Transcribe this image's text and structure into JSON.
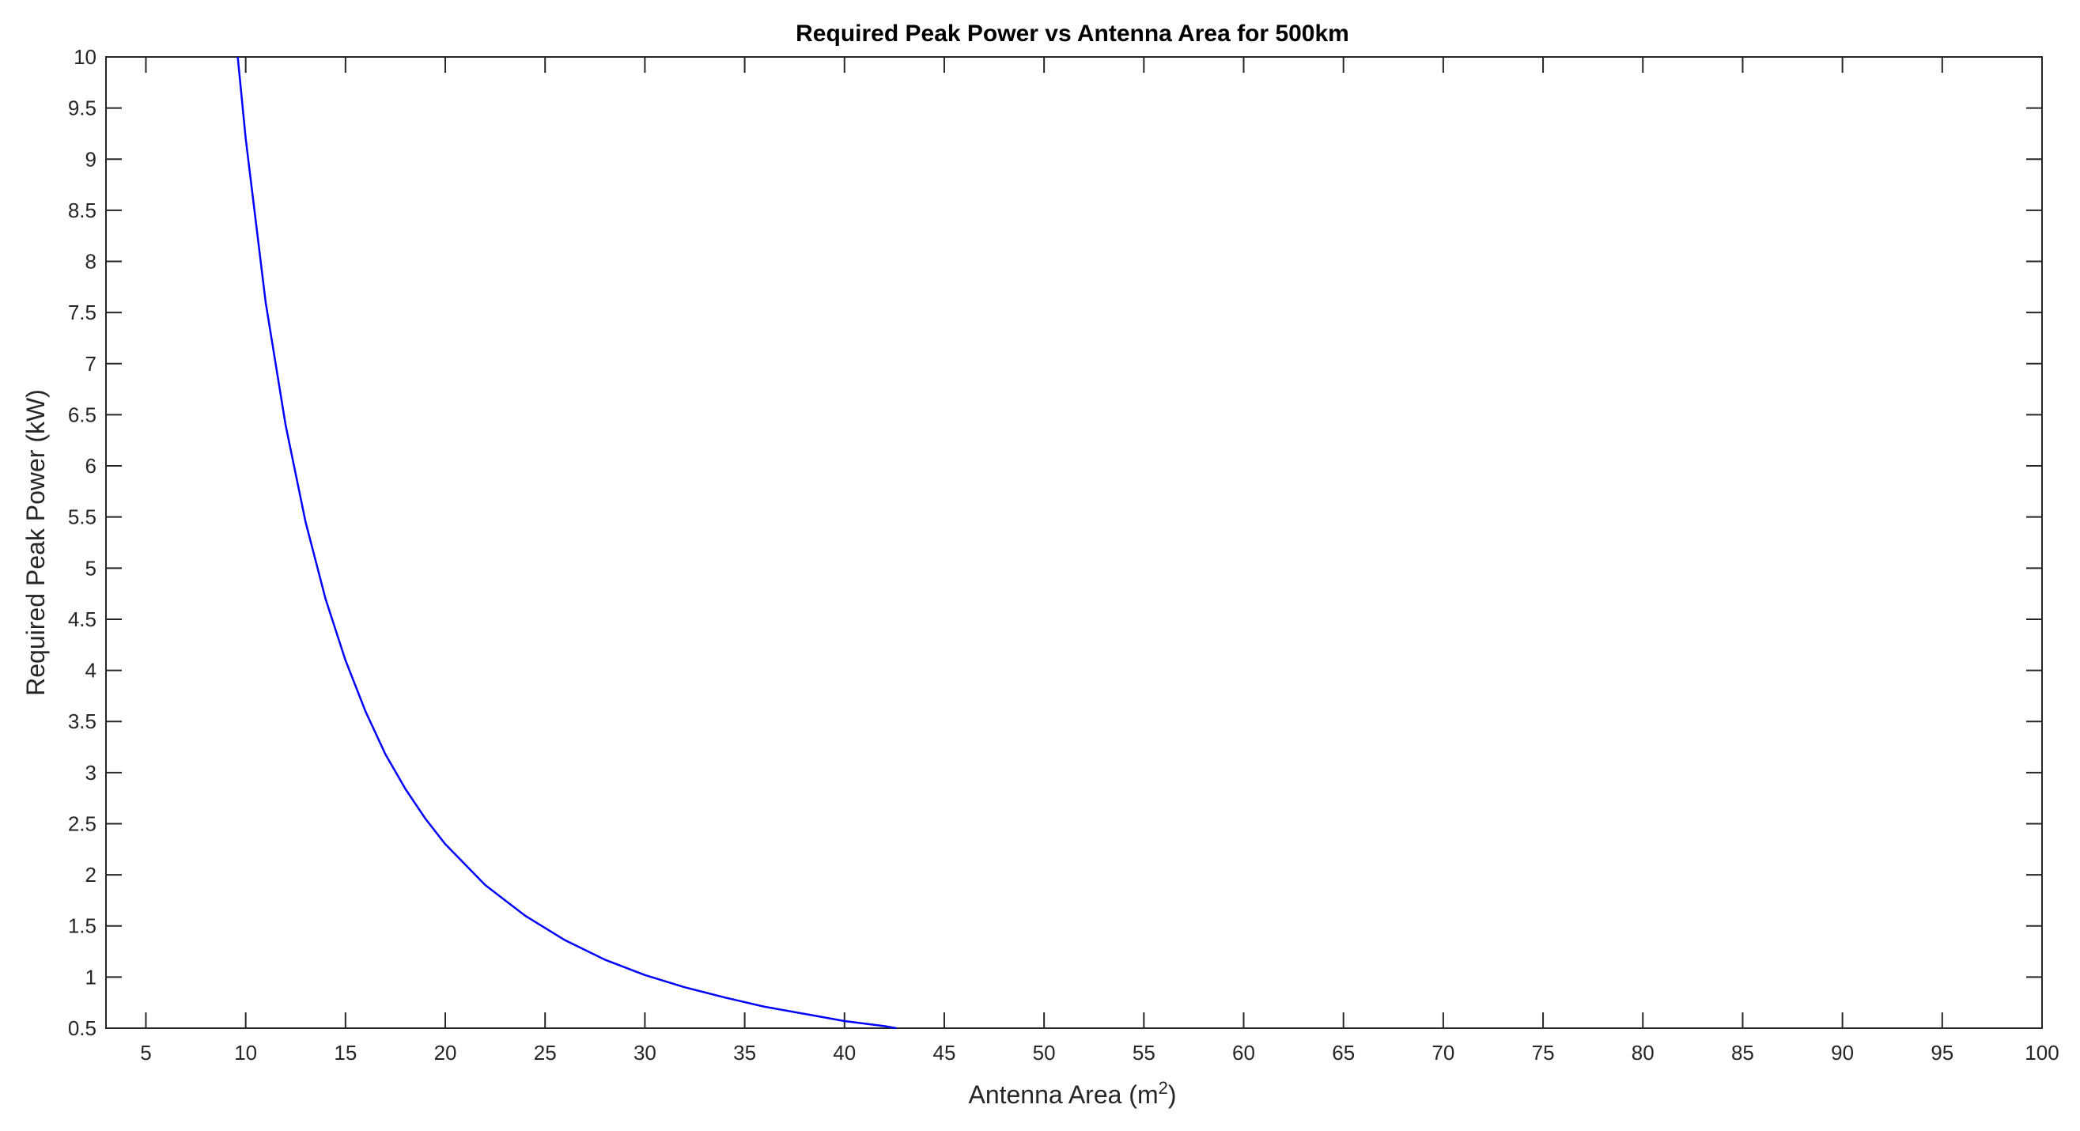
{
  "chart_data": {
    "type": "line",
    "title": "Required Peak Power vs Antenna Area for 500km",
    "xlabel": {
      "text": "Antenna Area (m",
      "sup": "2",
      "suffix": ")"
    },
    "ylabel": "Required Peak Power (kW)",
    "xlim": [
      3,
      100
    ],
    "ylim": [
      0.5,
      10
    ],
    "xticks": [
      5,
      10,
      15,
      20,
      25,
      30,
      35,
      40,
      45,
      50,
      55,
      60,
      65,
      70,
      75,
      80,
      85,
      90,
      95,
      100
    ],
    "yticks": [
      0.5,
      1,
      1.5,
      2,
      2.5,
      3,
      3.5,
      4,
      4.5,
      5,
      5.5,
      6,
      6.5,
      7,
      7.5,
      8,
      8.5,
      9,
      9.5,
      10
    ],
    "grid": false,
    "box": true,
    "series": [
      {
        "color": "#0000ff",
        "x": [
          9.6,
          10,
          11,
          12,
          13,
          14,
          15,
          16,
          17,
          18,
          19,
          20,
          22,
          24,
          26,
          28,
          30,
          32,
          34,
          36,
          38,
          40,
          42,
          42.6
        ],
        "y": [
          10,
          9.2,
          7.6,
          6.4,
          5.45,
          4.7,
          4.1,
          3.6,
          3.18,
          2.84,
          2.55,
          2.3,
          1.9,
          1.6,
          1.36,
          1.17,
          1.02,
          0.9,
          0.8,
          0.71,
          0.64,
          0.57,
          0.52,
          0.5
        ]
      }
    ]
  }
}
